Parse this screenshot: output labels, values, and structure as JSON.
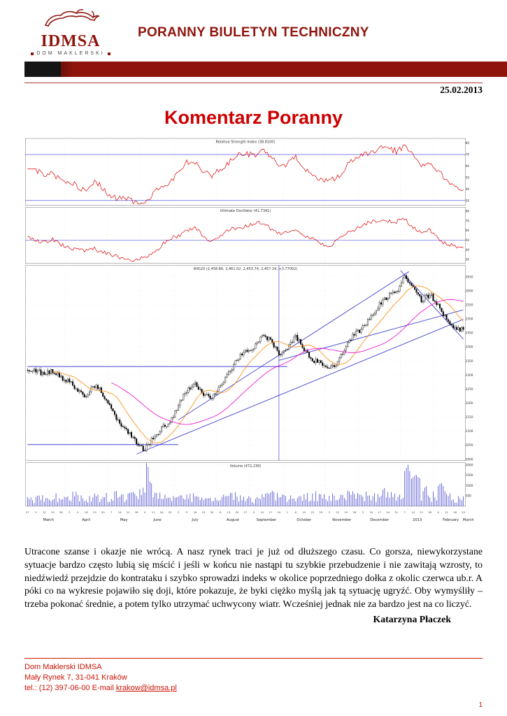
{
  "header": {
    "brand": {
      "name": "IDMSA",
      "subtitle": "DOM MAKLERSKI"
    },
    "title": "PORANNY BIULETYN TECHNICZNY",
    "date": "25.02.2013"
  },
  "page_title": "Komentarz Poranny",
  "colors": {
    "maroon": "#8f150c",
    "title_red": "#cc0000",
    "footer_red": "#cc1405",
    "chart_line_red": "#dd0000",
    "chart_blue": "#2a2acc",
    "volume_blue": "#4a4ad0",
    "ma_orange": "#ff8800",
    "ma_magenta": "#ee00cc"
  },
  "chart_data": {
    "type": "multi-panel-technical",
    "instrument": "WIG20",
    "panels": [
      {
        "id": "rsi",
        "type": "line",
        "title": "Relative Strength Index (38.8100)",
        "ylim": [
          26,
          84
        ],
        "yticks": [
          30,
          40,
          50,
          60,
          70,
          80
        ],
        "hlines": [
          30,
          70
        ],
        "line_color": "#dd0000",
        "values": [
          58,
          55,
          52,
          55,
          48,
          45,
          42,
          40,
          45,
          40,
          35,
          32,
          30,
          28,
          27,
          35,
          42,
          48,
          55,
          62,
          65,
          55,
          50,
          58,
          64,
          68,
          70,
          71,
          73,
          68,
          60,
          63,
          66,
          58,
          52,
          48,
          45,
          52,
          60,
          66,
          70,
          73,
          75,
          76,
          74,
          78,
          68,
          60,
          64,
          55,
          48,
          43,
          39
        ]
      },
      {
        "id": "ultimate",
        "type": "line",
        "title": "Ultimate Oscillator (41.7341)",
        "ylim": [
          26,
          84
        ],
        "yticks": [
          30,
          40,
          50,
          60,
          70,
          80
        ],
        "hlines": [
          50
        ],
        "line_color": "#dd0000",
        "values": [
          52,
          50,
          48,
          50,
          45,
          43,
          40,
          38,
          42,
          38,
          34,
          32,
          30,
          30,
          32,
          38,
          45,
          50,
          55,
          60,
          62,
          54,
          50,
          55,
          60,
          63,
          65,
          66,
          68,
          63,
          56,
          58,
          62,
          55,
          50,
          46,
          44,
          50,
          56,
          62,
          65,
          68,
          70,
          70,
          68,
          72,
          64,
          57,
          60,
          52,
          46,
          43,
          42
        ]
      },
      {
        "id": "price",
        "type": "candlestick",
        "title": "WIG20 (2,458.86, 2,461.02, 2,453.74, 2,457.24, +3.77002)",
        "ylim": [
          1995,
          2690
        ],
        "ytick_min": 2000,
        "ytick_max": 2650,
        "ytick_step": 50,
        "weekly_close": [
          2320,
          2310,
          2300,
          2320,
          2290,
          2270,
          2250,
          2230,
          2260,
          2230,
          2180,
          2130,
          2090,
          2060,
          2035,
          2070,
          2110,
          2140,
          2190,
          2240,
          2280,
          2230,
          2210,
          2260,
          2310,
          2350,
          2380,
          2400,
          2440,
          2420,
          2380,
          2400,
          2430,
          2390,
          2360,
          2340,
          2320,
          2350,
          2400,
          2440,
          2470,
          2510,
          2550,
          2580,
          2600,
          2650,
          2600,
          2570,
          2590,
          2540,
          2500,
          2470,
          2457
        ],
        "moving_averages": [
          {
            "window_days": 15,
            "color": "#ff8800"
          },
          {
            "window_days": 50,
            "color": "#ee00cc"
          }
        ],
        "trend_color": "#2a2acc",
        "trendlines": [
          [
            0,
            2330,
            31,
            2330
          ],
          [
            0,
            2052,
            18,
            2052
          ],
          [
            13,
            2018,
            52,
            2498
          ],
          [
            18,
            2140,
            45.5,
            2668
          ],
          [
            44.5,
            2672,
            52,
            2428
          ],
          [
            30,
            2352,
            52,
            2532
          ]
        ],
        "vline_week": 30
      },
      {
        "id": "volume",
        "type": "bar",
        "title": "Volume (472,230)",
        "ylim": [
          0,
          2100
        ],
        "yticks": [
          500,
          1000,
          1500,
          2000
        ],
        "bar_color": "#4a4ad0",
        "weekly_values": [
          420,
          510,
          380,
          620,
          450,
          700,
          520,
          480,
          560,
          640,
          720,
          580,
          660,
          820,
          1900,
          640,
          560,
          480,
          520,
          600,
          450,
          380,
          420,
          560,
          640,
          520,
          480,
          440,
          600,
          680,
          560,
          520,
          480,
          640,
          720,
          580,
          620,
          560,
          700,
          640,
          700,
          620,
          800,
          680,
          560,
          2000,
          1500,
          900,
          700,
          1100,
          620,
          480,
          472
        ]
      }
    ],
    "xaxis": {
      "weeks": 53,
      "day_labels": [
        "27",
        "5",
        "12",
        "19",
        "26",
        "2",
        "9",
        "16",
        "23",
        "30",
        "7",
        "14",
        "21",
        "28",
        "4",
        "11",
        "18",
        "25",
        "2",
        "9",
        "16",
        "23",
        "30",
        "6",
        "13",
        "20",
        "27",
        "3",
        "10",
        "17",
        "24",
        "1",
        "8",
        "15",
        "22",
        "29",
        "5",
        "12",
        "19",
        "26",
        "3",
        "10",
        "17",
        "24",
        "31",
        "7",
        "14",
        "21",
        "28",
        "4",
        "11",
        "18",
        "25"
      ],
      "month_labels": [
        {
          "label": "March",
          "week": 2.5
        },
        {
          "label": "April",
          "week": 7
        },
        {
          "label": "May",
          "week": 11.5
        },
        {
          "label": "June",
          "week": 15.5
        },
        {
          "label": "July",
          "week": 20
        },
        {
          "label": "August",
          "week": 24.5
        },
        {
          "label": "September",
          "week": 28.5
        },
        {
          "label": "October",
          "week": 33
        },
        {
          "label": "November",
          "week": 37.5
        },
        {
          "label": "December",
          "week": 42
        },
        {
          "label": "2013",
          "week": 46.5
        },
        {
          "label": "February",
          "week": 50.5
        },
        {
          "label": "March",
          "week": 52.6
        }
      ],
      "month_bounds": [
        4.5,
        9.5,
        13.5,
        17.5,
        22.5,
        26.5,
        30.5,
        35.5,
        39.5,
        44.5,
        48.5
      ]
    }
  },
  "body": {
    "paragraph": "Utracone szanse i okazje nie wrócą. A nasz rynek traci je już od dłuższego czasu. Co gorsza, niewykorzystane sytuacje bardzo często lubią się mścić i jeśli w końcu nie nastąpi tu szybkie przebudzenie i nie zawitają wzrosty, to niedźwiedź przejdzie do kontrataku i szybko sprowadzi indeks w okolice poprzedniego dołka z okolic czerwca ub.r. A póki co na wykresie pojawiło się doji, które pokazuje, że byki ciężko myślą jak tą sytuację ugryźć. Oby wymyśliły – trzeba pokonać średnie, a potem tylko utrzymać uchwycony wiatr. Wcześniej jednak nie za bardzo jest na co liczyć.",
    "signature": "Katarzyna Płaczek"
  },
  "footer": {
    "lines": [
      "Dom Maklerski IDMSA",
      "Mały Rynek 7, 31-041 Kraków"
    ],
    "tel_prefix": "tel.: (12) 397-06-00 E-mail ",
    "email": "krakow@idmsa.pl",
    "page_number": "1"
  }
}
